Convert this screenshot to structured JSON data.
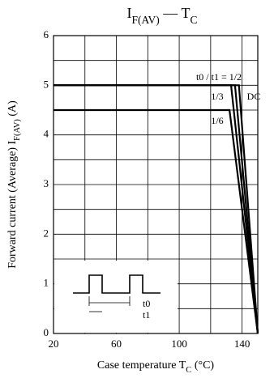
{
  "chart_data": {
    "type": "line",
    "title": [
      "I",
      "F(AV)",
      " — T",
      "C"
    ],
    "y_label": [
      "Forward current (Average)  I",
      "F(AV)",
      "  (A)"
    ],
    "x_label": [
      "Case temperature  T",
      "C",
      "  (°C)"
    ],
    "xlim": [
      20,
      150
    ],
    "xticks": [
      20,
      60,
      100,
      140
    ],
    "xminor": [
      40,
      80,
      120
    ],
    "ylim": [
      0,
      6
    ],
    "yticks": [
      0,
      1,
      2,
      3,
      4,
      5,
      6
    ],
    "yminor": [
      0.5,
      1.5,
      2.5,
      3.5,
      4.5,
      5.5
    ],
    "grid": true,
    "color": "#000000",
    "series": [
      {
        "name": "DC",
        "x": [
          20,
          138,
          150
        ],
        "values": [
          5,
          5,
          0
        ]
      },
      {
        "name": "t0 / t1 = 1/2",
        "x": [
          20,
          135.5,
          150
        ],
        "values": [
          5,
          5,
          0
        ]
      },
      {
        "name": "1/3",
        "x": [
          20,
          133,
          150
        ],
        "values": [
          5,
          5,
          0
        ]
      },
      {
        "name": "1/6",
        "x": [
          20,
          132,
          150
        ],
        "values": [
          4.5,
          4.5,
          0
        ]
      }
    ],
    "inset_labels": [
      "t0",
      "t1"
    ]
  }
}
